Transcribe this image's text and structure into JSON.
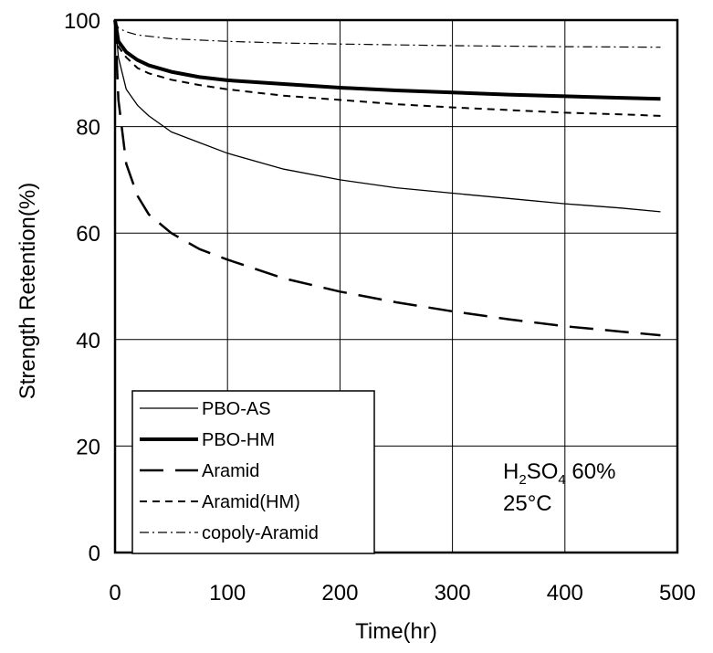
{
  "chart_data": {
    "type": "line",
    "xlabel": "Time(hr)",
    "ylabel": "Strength Retention(%)",
    "xlim": [
      0,
      500
    ],
    "ylim": [
      0,
      100
    ],
    "xticks": [
      0,
      100,
      200,
      300,
      400,
      500
    ],
    "yticks": [
      0,
      20,
      40,
      60,
      80,
      100
    ],
    "grid": true,
    "legend_position": "bottom-left",
    "annotation": {
      "prefix": "H",
      "sub1": "2",
      "mid": "SO",
      "sub2": "4",
      "suffix": " 60%",
      "line2": "25°C"
    },
    "series": [
      {
        "name": "PBO-AS",
        "style": "thin-solid",
        "x": [
          0,
          3,
          10,
          20,
          30,
          50,
          75,
          100,
          150,
          200,
          250,
          300,
          350,
          400,
          450,
          485
        ],
        "y": [
          100,
          93,
          87,
          84,
          82,
          79,
          77,
          75,
          72,
          70,
          68.5,
          67.5,
          66.5,
          65.5,
          64.7,
          64
        ]
      },
      {
        "name": "PBO-HM",
        "style": "thick-solid",
        "x": [
          0,
          3,
          10,
          20,
          30,
          50,
          75,
          100,
          150,
          200,
          250,
          300,
          350,
          400,
          450,
          485
        ],
        "y": [
          100,
          96,
          94,
          92.5,
          91.5,
          90.3,
          89.3,
          88.7,
          88,
          87.3,
          86.8,
          86.4,
          86,
          85.7,
          85.4,
          85.2
        ]
      },
      {
        "name": "Aramid",
        "style": "long-dash",
        "x": [
          0,
          3,
          10,
          20,
          30,
          50,
          75,
          100,
          150,
          200,
          250,
          300,
          350,
          400,
          450,
          485
        ],
        "y": [
          100,
          85,
          73,
          67,
          63.5,
          60,
          57,
          55,
          51.5,
          49,
          47,
          45.3,
          43.8,
          42.5,
          41.5,
          40.8
        ]
      },
      {
        "name": "Aramid(HM)",
        "style": "short-dash",
        "x": [
          0,
          3,
          10,
          20,
          30,
          50,
          75,
          100,
          150,
          200,
          250,
          300,
          350,
          400,
          450,
          485
        ],
        "y": [
          100,
          95,
          93,
          91,
          90,
          88.8,
          87.8,
          87,
          85.8,
          85,
          84.2,
          83.6,
          83.1,
          82.6,
          82.3,
          82
        ]
      },
      {
        "name": "copoly-Aramid",
        "style": "dash-dot",
        "x": [
          0,
          3,
          10,
          20,
          50,
          100,
          150,
          200,
          300,
          400,
          485
        ],
        "y": [
          100,
          98.5,
          97.8,
          97.2,
          96.5,
          96,
          95.7,
          95.5,
          95.2,
          95,
          94.9
        ]
      }
    ]
  }
}
